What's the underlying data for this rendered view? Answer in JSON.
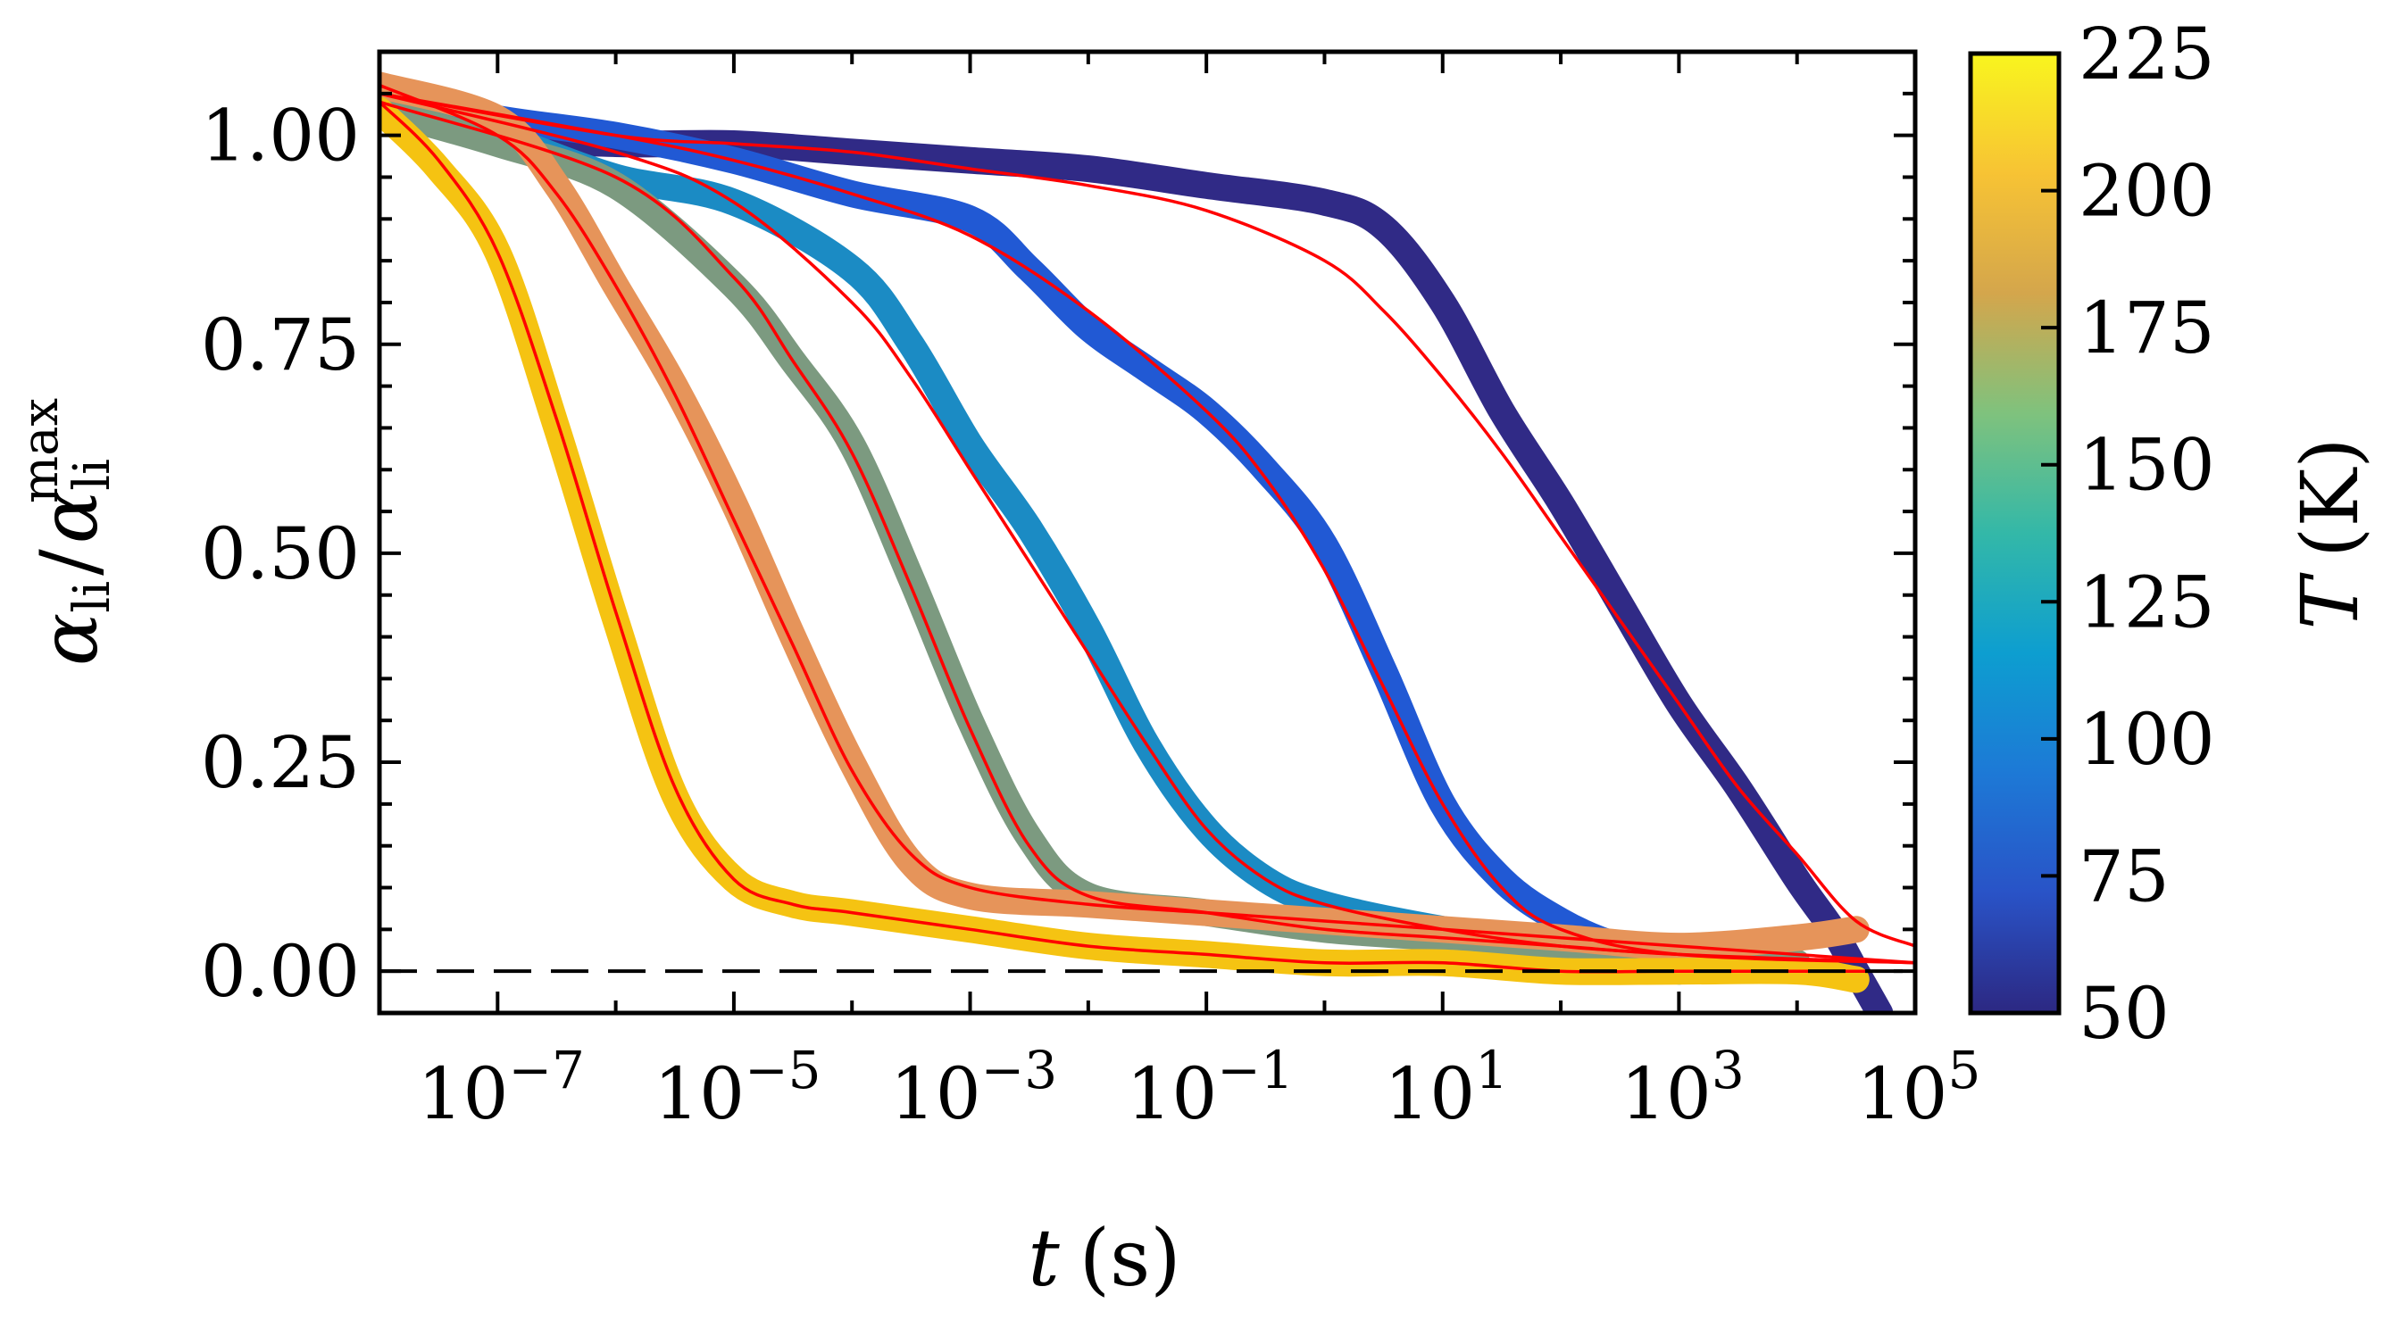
{
  "chart_data": {
    "type": "line",
    "xlabel_var": "t",
    "xlabel_unit": "(s)",
    "ylabel_num": "α",
    "ylabel_num_sub": "li",
    "ylabel_sep": "/",
    "ylabel_den": "α",
    "ylabel_den_sub": "li",
    "ylabel_den_sup": "max",
    "x_scale": "log",
    "xlim_log10": [
      -8,
      5
    ],
    "ylim": [
      -0.05,
      1.1
    ],
    "x_ticks_log10": [
      -7,
      -5,
      -3,
      -1,
      1,
      3,
      5
    ],
    "x_tick_base": "10",
    "x_tick_exponents": [
      "−7",
      "−5",
      "−3",
      "−1",
      "1",
      "3",
      "5"
    ],
    "y_ticks": [
      0.0,
      0.25,
      0.5,
      0.75,
      1.0
    ],
    "y_tick_labels": [
      "0.00",
      "0.25",
      "0.50",
      "0.75",
      "1.00"
    ],
    "reference_line": {
      "y": 0.0,
      "style": "dashed",
      "color": "#000000"
    },
    "fit_color": "#ff0000",
    "colorbar": {
      "label_var": "T",
      "label_unit": "(K)",
      "min": 50,
      "max": 225,
      "ticks": [
        50,
        75,
        100,
        125,
        150,
        175,
        200,
        225
      ],
      "tick_labels": [
        "50",
        "75",
        "100",
        "125",
        "150",
        "175",
        "200",
        "225"
      ],
      "colormap": [
        "#2c2882",
        "#2953c7",
        "#1d79d6",
        "#0d9ed0",
        "#33b8a8",
        "#7fc27d",
        "#d4a64c",
        "#f7c334",
        "#f9f51e"
      ]
    },
    "series": [
      {
        "name": "T=50K",
        "color": "#302a86",
        "data_log10t": [
          -8,
          -7,
          -6,
          -5,
          -4,
          -3,
          -2,
          -1,
          0,
          0.5,
          1,
          1.5,
          2,
          2.5,
          3,
          3.5,
          4,
          4.3,
          4.5,
          4.7
        ],
        "data_y": [
          1.05,
          1.0,
          0.99,
          0.99,
          0.98,
          0.97,
          0.96,
          0.94,
          0.92,
          0.89,
          0.8,
          0.67,
          0.56,
          0.44,
          0.32,
          0.22,
          0.11,
          0.05,
          0.0,
          -0.05
        ],
        "fit_log10t": [
          -8,
          -6,
          -5,
          -4,
          -3,
          -2,
          -1,
          0,
          0.5,
          1,
          1.5,
          2,
          2.5,
          3,
          3.5,
          4,
          4.5,
          5
        ],
        "fit_y": [
          1.05,
          1.0,
          0.99,
          0.98,
          0.96,
          0.94,
          0.91,
          0.85,
          0.79,
          0.71,
          0.62,
          0.52,
          0.42,
          0.32,
          0.22,
          0.14,
          0.06,
          0.03
        ]
      },
      {
        "name": "T=75K",
        "color": "#2159d4",
        "data_log10t": [
          -8,
          -7,
          -6,
          -5,
          -4,
          -3,
          -2.5,
          -2,
          -1.5,
          -1,
          -0.5,
          0,
          0.5,
          1,
          1.5,
          2,
          2.5,
          3
        ],
        "data_y": [
          1.05,
          1.02,
          1.0,
          0.97,
          0.93,
          0.9,
          0.84,
          0.77,
          0.72,
          0.67,
          0.6,
          0.51,
          0.36,
          0.2,
          0.11,
          0.06,
          0.03,
          0.02
        ],
        "fit_log10t": [
          -8,
          -6,
          -5,
          -4,
          -3,
          -2,
          -1,
          -0.5,
          0,
          0.5,
          1,
          1.5,
          2,
          3,
          5
        ],
        "fit_y": [
          1.05,
          1.0,
          0.97,
          0.93,
          0.88,
          0.79,
          0.67,
          0.59,
          0.48,
          0.34,
          0.2,
          0.1,
          0.05,
          0.02,
          0.01
        ]
      },
      {
        "name": "T=100K",
        "color": "#1b8bc4",
        "data_log10t": [
          -8,
          -7,
          -6,
          -5,
          -4,
          -3.5,
          -3,
          -2.5,
          -2,
          -1.5,
          -1,
          -0.5,
          0,
          1,
          2,
          3
        ],
        "data_y": [
          1.04,
          1.0,
          0.95,
          0.92,
          0.84,
          0.75,
          0.63,
          0.53,
          0.41,
          0.27,
          0.17,
          0.11,
          0.08,
          0.05,
          0.03,
          0.0
        ],
        "fit_log10t": [
          -8,
          -6,
          -5,
          -4,
          -3.5,
          -3,
          -2.5,
          -2,
          -1.5,
          -1,
          -0.5,
          0,
          1,
          2,
          3
        ],
        "fit_y": [
          1.05,
          0.98,
          0.92,
          0.8,
          0.71,
          0.6,
          0.49,
          0.38,
          0.27,
          0.17,
          0.11,
          0.08,
          0.05,
          0.03,
          0.02
        ]
      },
      {
        "name": "T=175K",
        "color": "#7c9a80",
        "data_log10t": [
          -8,
          -7,
          -6,
          -5,
          -4.5,
          -4,
          -3.5,
          -3,
          -2.5,
          -2,
          -1,
          0,
          1,
          2,
          3,
          4
        ],
        "data_y": [
          1.03,
          0.99,
          0.94,
          0.82,
          0.73,
          0.63,
          0.47,
          0.3,
          0.16,
          0.09,
          0.07,
          0.05,
          0.04,
          0.03,
          0.02,
          0.01
        ],
        "fit_log10t": [
          -8,
          -6,
          -5,
          -4.5,
          -4,
          -3.5,
          -3,
          -2.5,
          -2,
          -1,
          0,
          1,
          2,
          3,
          5
        ],
        "fit_y": [
          1.04,
          0.95,
          0.83,
          0.73,
          0.62,
          0.46,
          0.29,
          0.15,
          0.09,
          0.07,
          0.05,
          0.04,
          0.03,
          0.02,
          0.01
        ]
      },
      {
        "name": "T=200K",
        "color": "#e6945a",
        "data_log10t": [
          -8,
          -7,
          -6.5,
          -6,
          -5.5,
          -5,
          -4.5,
          -4,
          -3.5,
          -3,
          -2,
          -1,
          0,
          1,
          2,
          3,
          4,
          4.5
        ],
        "data_y": [
          1.06,
          1.02,
          0.94,
          0.82,
          0.7,
          0.56,
          0.4,
          0.25,
          0.13,
          0.09,
          0.08,
          0.07,
          0.06,
          0.05,
          0.04,
          0.03,
          0.04,
          0.05
        ],
        "fit_log10t": [
          -8,
          -7,
          -6.5,
          -6,
          -5.5,
          -5,
          -4.5,
          -4,
          -3.5,
          -3,
          -2,
          -1,
          0,
          1,
          2,
          3,
          5
        ],
        "fit_y": [
          1.06,
          1.0,
          0.93,
          0.82,
          0.69,
          0.54,
          0.39,
          0.24,
          0.14,
          0.1,
          0.08,
          0.07,
          0.06,
          0.05,
          0.04,
          0.03,
          0.01
        ]
      },
      {
        "name": "T=225K",
        "color": "#f5c312",
        "data_log10t": [
          -8,
          -7.5,
          -7,
          -6.5,
          -6,
          -5.5,
          -5,
          -4.5,
          -4,
          -3,
          -2,
          -1,
          0,
          1,
          2,
          3,
          4,
          4.5
        ],
        "data_y": [
          1.03,
          0.96,
          0.86,
          0.65,
          0.42,
          0.21,
          0.11,
          0.08,
          0.07,
          0.05,
          0.03,
          0.02,
          0.01,
          0.01,
          0.0,
          0.0,
          0.0,
          -0.01
        ],
        "fit_log10t": [
          -8,
          -7.5,
          -7,
          -6.5,
          -6,
          -5.5,
          -5,
          -4.5,
          -4,
          -3,
          -2,
          -1,
          0,
          1,
          2,
          3,
          5
        ],
        "fit_y": [
          1.04,
          0.97,
          0.86,
          0.66,
          0.43,
          0.22,
          0.11,
          0.08,
          0.07,
          0.05,
          0.03,
          0.02,
          0.01,
          0.01,
          0.0,
          0.0,
          0.0
        ]
      }
    ]
  }
}
